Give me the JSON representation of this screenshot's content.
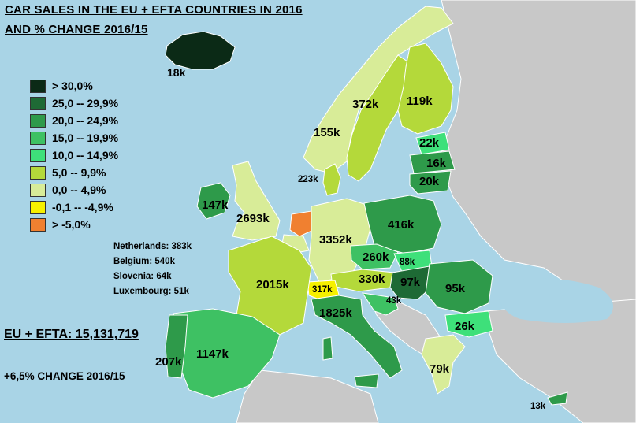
{
  "title": {
    "line1": "CAR SALES IN THE EU + EFTA COUNTRIES IN 2016",
    "line2": "AND % CHANGE 2016/15"
  },
  "legend": [
    {
      "label": "> 30,0%",
      "color": "#0b2a16"
    },
    {
      "label": "25,0 -- 29,9%",
      "color": "#1e6a35"
    },
    {
      "label": "20,0 -- 24,9%",
      "color": "#2e9a4a"
    },
    {
      "label": "15,0 -- 19,9%",
      "color": "#3ec163"
    },
    {
      "label": "10,0 -- 14,9%",
      "color": "#3ee07a"
    },
    {
      "label": "5,0 -- 9,9%",
      "color": "#b4d93a"
    },
    {
      "label": "0,0 -- 4,9%",
      "color": "#d8ec98"
    },
    {
      "label": "-0,1 -- -4,9%",
      "color": "#f6f000"
    },
    {
      "label": "> -5,0%",
      "color": "#f08030"
    }
  ],
  "countries": {
    "iceland": "18k",
    "norway": "155k",
    "sweden": "372k",
    "finland": "119k",
    "estonia": "22k",
    "latvia": "16k",
    "lithuania": "20k",
    "denmark": "223k",
    "ireland": "147k",
    "uk": "2693k",
    "germany": "3352k",
    "poland": "416k",
    "czechia": "260k",
    "slovakia": "88k",
    "austria": "330k",
    "hungary": "97k",
    "romania": "95k",
    "switzerland": "317k",
    "croatia": "43k",
    "bulgaria": "26k",
    "france": "2015k",
    "italy": "1825k",
    "spain": "1147k",
    "portugal": "207k",
    "greece": "79k",
    "cyprus": "13k"
  },
  "notes": [
    "Netherlands: 383k",
    "Belgium: 540k",
    "Slovenia: 64k",
    "Luxembourg: 51k"
  ],
  "total": "EU + EFTA: 15,131,719",
  "change": "+6,5% CHANGE 2016/15",
  "colors": {
    "sea": "#a9d4e6",
    "non_member": "#c8c8c8"
  }
}
